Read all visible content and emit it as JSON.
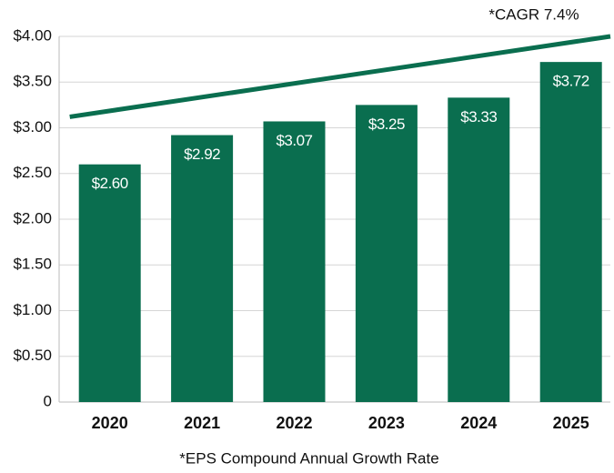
{
  "chart_data": {
    "type": "bar",
    "annotation": "*CAGR 7.4%",
    "footnote": "*EPS Compound Annual Growth Rate",
    "categories": [
      "2020",
      "2021",
      "2022",
      "2023",
      "2024",
      "2025"
    ],
    "values": [
      2.6,
      2.92,
      3.07,
      3.25,
      3.33,
      3.72
    ],
    "value_labels": [
      "$2.60",
      "$2.92",
      "$3.07",
      "$3.25",
      "$3.33",
      "$3.72"
    ],
    "color": "#0a6e4f",
    "trend": {
      "values": [
        3.12,
        4.0
      ],
      "color": "#0a6e4f"
    },
    "ylim": [
      0,
      4
    ],
    "yticks": [
      0,
      {
        "value": 0.5,
        "label": "$0.50"
      },
      {
        "value": 1,
        "label": "$1.00"
      },
      {
        "value": 1.5,
        "label": "$1.50"
      },
      {
        "value": 2,
        "label": "$2.00"
      },
      {
        "value": 2.5,
        "label": "$2.50"
      },
      {
        "value": 3,
        "label": "$3.00"
      },
      {
        "value": 3.5,
        "label": "$3.50"
      },
      {
        "value": 4,
        "label": "$4.00"
      }
    ],
    "grid": true
  }
}
